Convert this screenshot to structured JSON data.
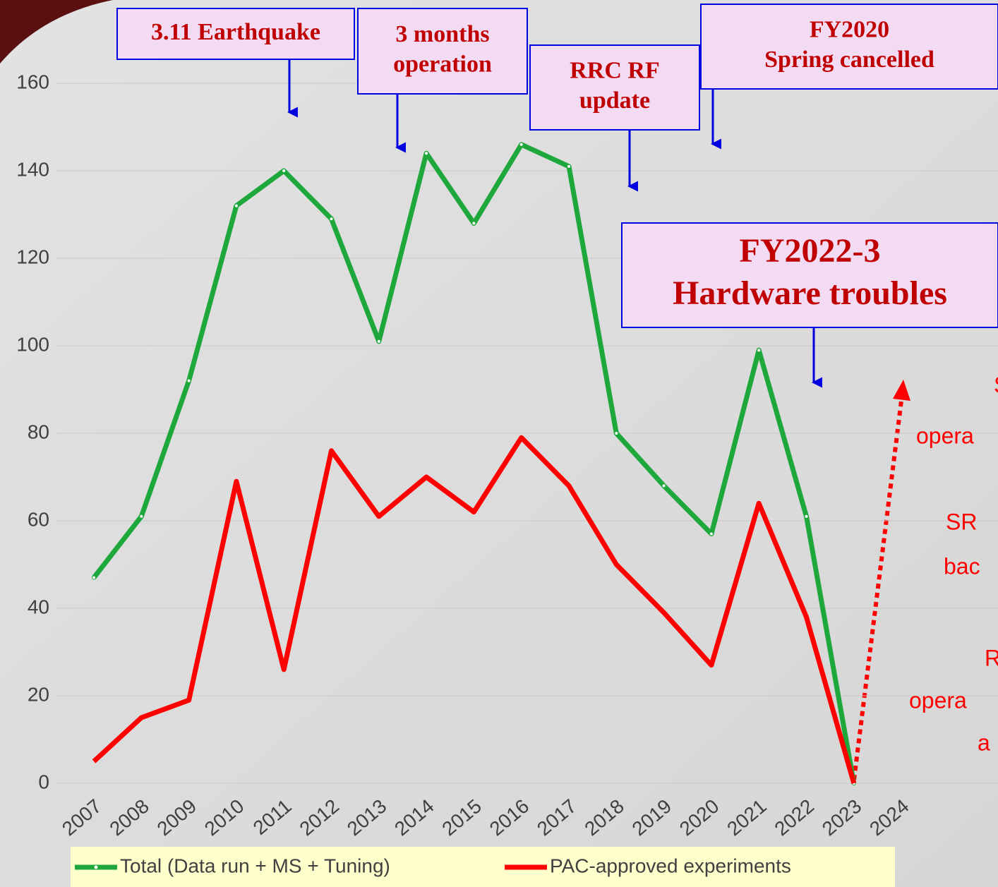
{
  "chart_data": {
    "type": "line",
    "categories": [
      "2007",
      "2008",
      "2009",
      "2010",
      "2011",
      "2012",
      "2013",
      "2014",
      "2015",
      "2016",
      "2017",
      "2018",
      "2019",
      "2020",
      "2021",
      "2022",
      "2023",
      "2024"
    ],
    "series": [
      {
        "name": "Total (Data run + MS + Tuning)",
        "color": "#1ea83c",
        "values": [
          47,
          61,
          92,
          132,
          140,
          129,
          101,
          144,
          128,
          146,
          141,
          80,
          68,
          57,
          99,
          61,
          0,
          null
        ]
      },
      {
        "name": "PAC-approved experiments",
        "color": "#ff0000",
        "values": [
          5,
          15,
          19,
          69,
          26,
          76,
          61,
          70,
          62,
          79,
          68,
          50,
          39,
          27,
          64,
          38,
          0,
          null
        ]
      }
    ],
    "ylim": [
      0,
      160
    ],
    "yticks": [
      0,
      20,
      40,
      60,
      80,
      100,
      120,
      140,
      160
    ],
    "legend": "bottom",
    "annotations": [
      {
        "lines": [
          "3.11 Earthquake"
        ]
      },
      {
        "lines": [
          "3 months",
          "operation"
        ]
      },
      {
        "lines": [
          "RRC RF",
          "update"
        ]
      },
      {
        "lines": [
          "FY2020",
          "Spring cancelled"
        ]
      },
      {
        "lines": [
          "FY2022-3",
          "Hardware troubles"
        ]
      }
    ],
    "side_text": [
      "S",
      "opera",
      "SR",
      "bac",
      "R",
      "opera",
      "a"
    ]
  }
}
